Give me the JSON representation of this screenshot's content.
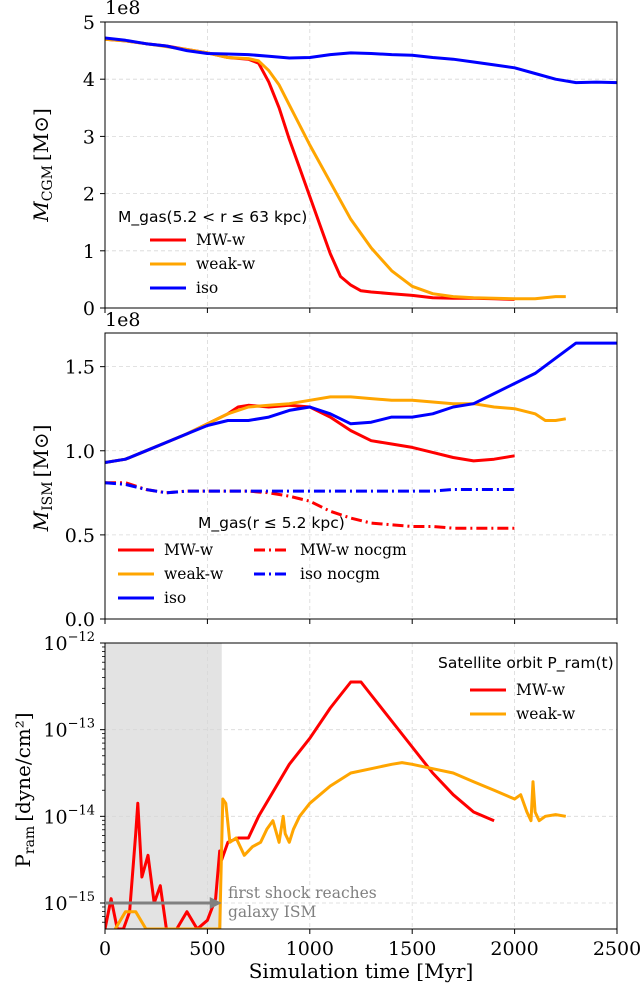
{
  "chart_data": [
    {
      "type": "line",
      "panel": "cgm",
      "ylabel_main": "M",
      "ylabel_sub": "CGM",
      "ylabel_unit": "[M⊙]",
      "offset_text": "1e8",
      "xlim": [
        0,
        2500
      ],
      "ylim": [
        0,
        5
      ],
      "yticks": [
        0,
        1,
        2,
        3,
        4,
        5
      ],
      "ytick_labels": [
        "0",
        "1",
        "2",
        "3",
        "4",
        "5"
      ],
      "grid": true,
      "legend_title": "M_gas(5.2 < r ≤ 63 kpc)",
      "legend_position": "center-left",
      "series": [
        {
          "name": "MW-w",
          "color": "#ff0000",
          "x": [
            0,
            100,
            200,
            300,
            400,
            500,
            600,
            700,
            750,
            800,
            850,
            900,
            950,
            1000,
            1050,
            1100,
            1150,
            1200,
            1250,
            1300,
            1400,
            1500,
            1600,
            1700,
            1800,
            1900,
            2000
          ],
          "y": [
            4.7,
            4.67,
            4.62,
            4.58,
            4.52,
            4.46,
            4.38,
            4.35,
            4.28,
            3.95,
            3.5,
            2.95,
            2.45,
            1.95,
            1.45,
            0.95,
            0.55,
            0.4,
            0.3,
            0.28,
            0.25,
            0.22,
            0.18,
            0.17,
            0.17,
            0.16,
            0.15
          ]
        },
        {
          "name": "weak-w",
          "color": "#ffa500",
          "x": [
            0,
            100,
            200,
            300,
            400,
            500,
            600,
            700,
            750,
            800,
            850,
            900,
            950,
            1000,
            1100,
            1200,
            1300,
            1400,
            1500,
            1600,
            1700,
            1800,
            1900,
            2000,
            2100,
            2200,
            2250
          ],
          "y": [
            4.7,
            4.67,
            4.62,
            4.57,
            4.52,
            4.46,
            4.38,
            4.36,
            4.32,
            4.15,
            3.9,
            3.55,
            3.2,
            2.85,
            2.2,
            1.55,
            1.05,
            0.65,
            0.38,
            0.25,
            0.2,
            0.18,
            0.17,
            0.16,
            0.16,
            0.2,
            0.2
          ]
        },
        {
          "name": "iso",
          "color": "#0000ff",
          "x": [
            0,
            100,
            200,
            300,
            400,
            500,
            600,
            700,
            800,
            900,
            1000,
            1100,
            1200,
            1300,
            1400,
            1500,
            1600,
            1700,
            1800,
            1900,
            2000,
            2100,
            2200,
            2300,
            2400,
            2500
          ],
          "y": [
            4.72,
            4.68,
            4.62,
            4.58,
            4.5,
            4.45,
            4.44,
            4.43,
            4.4,
            4.37,
            4.38,
            4.43,
            4.46,
            4.45,
            4.43,
            4.42,
            4.38,
            4.35,
            4.3,
            4.25,
            4.2,
            4.1,
            4.0,
            3.94,
            3.95,
            3.94
          ]
        }
      ]
    },
    {
      "type": "line",
      "panel": "ism",
      "ylabel_main": "M",
      "ylabel_sub": "ISM",
      "ylabel_unit": "[M⊙]",
      "offset_text": "1e8",
      "xlim": [
        0,
        2500
      ],
      "ylim": [
        0,
        1.7
      ],
      "yticks": [
        0,
        0.5,
        1.0,
        1.5
      ],
      "ytick_labels": [
        "0.0",
        "0.5",
        "1.0",
        "1.5"
      ],
      "grid": true,
      "legend_title": "M_gas(r ≤ 5.2 kpc)",
      "legend_position": "lower-left",
      "series": [
        {
          "name": "MW-w",
          "color": "#ff0000",
          "dash": "solid",
          "x": [
            0,
            100,
            200,
            300,
            400,
            500,
            600,
            650,
            700,
            800,
            900,
            1000,
            1100,
            1200,
            1300,
            1400,
            1500,
            1600,
            1700,
            1800,
            1900,
            2000
          ],
          "y": [
            0.93,
            0.95,
            1.0,
            1.05,
            1.1,
            1.16,
            1.22,
            1.26,
            1.27,
            1.26,
            1.27,
            1.26,
            1.2,
            1.12,
            1.06,
            1.04,
            1.02,
            0.99,
            0.96,
            0.94,
            0.95,
            0.97
          ]
        },
        {
          "name": "weak-w",
          "color": "#ffa500",
          "dash": "solid",
          "x": [
            0,
            100,
            200,
            300,
            400,
            500,
            600,
            700,
            800,
            900,
            1000,
            1100,
            1200,
            1300,
            1400,
            1500,
            1600,
            1700,
            1800,
            1900,
            2000,
            2100,
            2150,
            2200,
            2250
          ],
          "y": [
            0.93,
            0.95,
            1.0,
            1.05,
            1.1,
            1.16,
            1.22,
            1.26,
            1.27,
            1.28,
            1.3,
            1.32,
            1.32,
            1.31,
            1.3,
            1.3,
            1.29,
            1.28,
            1.28,
            1.26,
            1.25,
            1.22,
            1.18,
            1.18,
            1.19
          ]
        },
        {
          "name": "iso",
          "color": "#0000ff",
          "dash": "solid",
          "x": [
            0,
            100,
            200,
            300,
            400,
            500,
            600,
            700,
            800,
            900,
            1000,
            1100,
            1200,
            1300,
            1400,
            1500,
            1600,
            1700,
            1800,
            1900,
            2000,
            2100,
            2200,
            2300,
            2400,
            2500
          ],
          "y": [
            0.93,
            0.95,
            1.0,
            1.05,
            1.1,
            1.15,
            1.18,
            1.18,
            1.2,
            1.24,
            1.26,
            1.22,
            1.16,
            1.17,
            1.2,
            1.2,
            1.22,
            1.26,
            1.28,
            1.34,
            1.4,
            1.46,
            1.55,
            1.64,
            1.64,
            1.64
          ]
        },
        {
          "name": "MW-w nocgm",
          "color": "#ff0000",
          "dash": "dashdot",
          "x": [
            0,
            100,
            200,
            300,
            400,
            500,
            600,
            700,
            800,
            900,
            1000,
            1100,
            1200,
            1300,
            1400,
            1500,
            1600,
            1700,
            1800,
            1900,
            2000
          ],
          "y": [
            0.81,
            0.81,
            0.77,
            0.75,
            0.76,
            0.76,
            0.76,
            0.76,
            0.75,
            0.73,
            0.7,
            0.64,
            0.6,
            0.57,
            0.56,
            0.55,
            0.55,
            0.54,
            0.54,
            0.54,
            0.54
          ]
        },
        {
          "name": "iso nocgm",
          "color": "#0000ff",
          "dash": "dashdot",
          "x": [
            0,
            100,
            200,
            300,
            400,
            500,
            600,
            700,
            800,
            900,
            1000,
            1100,
            1200,
            1300,
            1400,
            1500,
            1600,
            1700,
            1800,
            1900,
            2000
          ],
          "y": [
            0.81,
            0.8,
            0.77,
            0.75,
            0.76,
            0.76,
            0.76,
            0.76,
            0.76,
            0.76,
            0.76,
            0.76,
            0.76,
            0.76,
            0.76,
            0.76,
            0.76,
            0.77,
            0.77,
            0.77,
            0.77
          ]
        }
      ]
    },
    {
      "type": "line",
      "panel": "pram",
      "ylabel_main": "P",
      "ylabel_sub": "ram",
      "ylabel_unit": "[dyne/cm²]",
      "xlabel": "Simulation time [Myr]",
      "xlim": [
        0,
        2500
      ],
      "xticks": [
        0,
        500,
        1000,
        1500,
        2000,
        2500
      ],
      "xtick_labels": [
        "0",
        "500",
        "1000",
        "1500",
        "2000",
        "2500"
      ],
      "yscale": "log",
      "ylim_log10": [
        -15.3,
        -12
      ],
      "yticks_log10": [
        -15,
        -14,
        -13,
        -12
      ],
      "ytick_bases": [
        "10",
        "10",
        "10",
        "10"
      ],
      "ytick_exps": [
        "−15",
        "−14",
        "−13",
        "−12"
      ],
      "grid": true,
      "legend_title": "Satellite orbit P_ram(t)",
      "legend_position": "top-right",
      "shaded_region_x": [
        0,
        570
      ],
      "annotation": {
        "line1": "first shock reaches",
        "line2": "galaxy ISM",
        "arrow_x": [
          0,
          570
        ],
        "arrow_y_log10": -15
      },
      "series": [
        {
          "name": "MW-w",
          "color": "#ff0000",
          "x": [
            0,
            30,
            60,
            90,
            120,
            150,
            160,
            180,
            210,
            240,
            270,
            300,
            350,
            400,
            450,
            500,
            540,
            560,
            570,
            600,
            650,
            700,
            750,
            800,
            900,
            1000,
            1100,
            1150,
            1200,
            1250,
            1300,
            1400,
            1500,
            1600,
            1700,
            1800,
            1900
          ],
          "y": [
            -15.3,
            -14.95,
            -15.3,
            -15.3,
            -15.1,
            -14.2,
            -13.85,
            -14.7,
            -14.45,
            -15.0,
            -14.8,
            -15.3,
            -15.3,
            -15.1,
            -15.3,
            -15.2,
            -14.95,
            -14.4,
            -14.5,
            -14.3,
            -14.25,
            -14.25,
            -14.0,
            -13.8,
            -13.4,
            -13.1,
            -12.75,
            -12.6,
            -12.45,
            -12.45,
            -12.6,
            -12.9,
            -13.2,
            -13.5,
            -13.75,
            -13.95,
            -14.05
          ]
        },
        {
          "name": "weak-w",
          "color": "#ffa500",
          "x": [
            50,
            100,
            150,
            200,
            250,
            300,
            350,
            400,
            450,
            500,
            530,
            560,
            575,
            590,
            610,
            640,
            680,
            720,
            760,
            790,
            820,
            850,
            870,
            880,
            900,
            920,
            950,
            1000,
            1100,
            1200,
            1300,
            1400,
            1450,
            1500,
            1600,
            1700,
            1800,
            1900,
            2000,
            2030,
            2060,
            2080,
            2090,
            2100,
            2120,
            2150,
            2200,
            2250
          ],
          "y": [
            -15.3,
            -15.1,
            -15.1,
            -15.3,
            -15.3,
            -15.3,
            -15.3,
            -15.3,
            -15.3,
            -15.3,
            -15.3,
            -15.3,
            -13.8,
            -13.85,
            -14.3,
            -14.25,
            -14.45,
            -14.35,
            -14.3,
            -14.15,
            -14.05,
            -14.3,
            -14.0,
            -14.2,
            -14.3,
            -14.15,
            -14.0,
            -13.85,
            -13.65,
            -13.5,
            -13.45,
            -13.4,
            -13.38,
            -13.4,
            -13.45,
            -13.5,
            -13.6,
            -13.7,
            -13.8,
            -13.75,
            -13.95,
            -14.05,
            -13.6,
            -13.95,
            -14.05,
            -14.0,
            -13.98,
            -14.0
          ]
        }
      ]
    }
  ]
}
